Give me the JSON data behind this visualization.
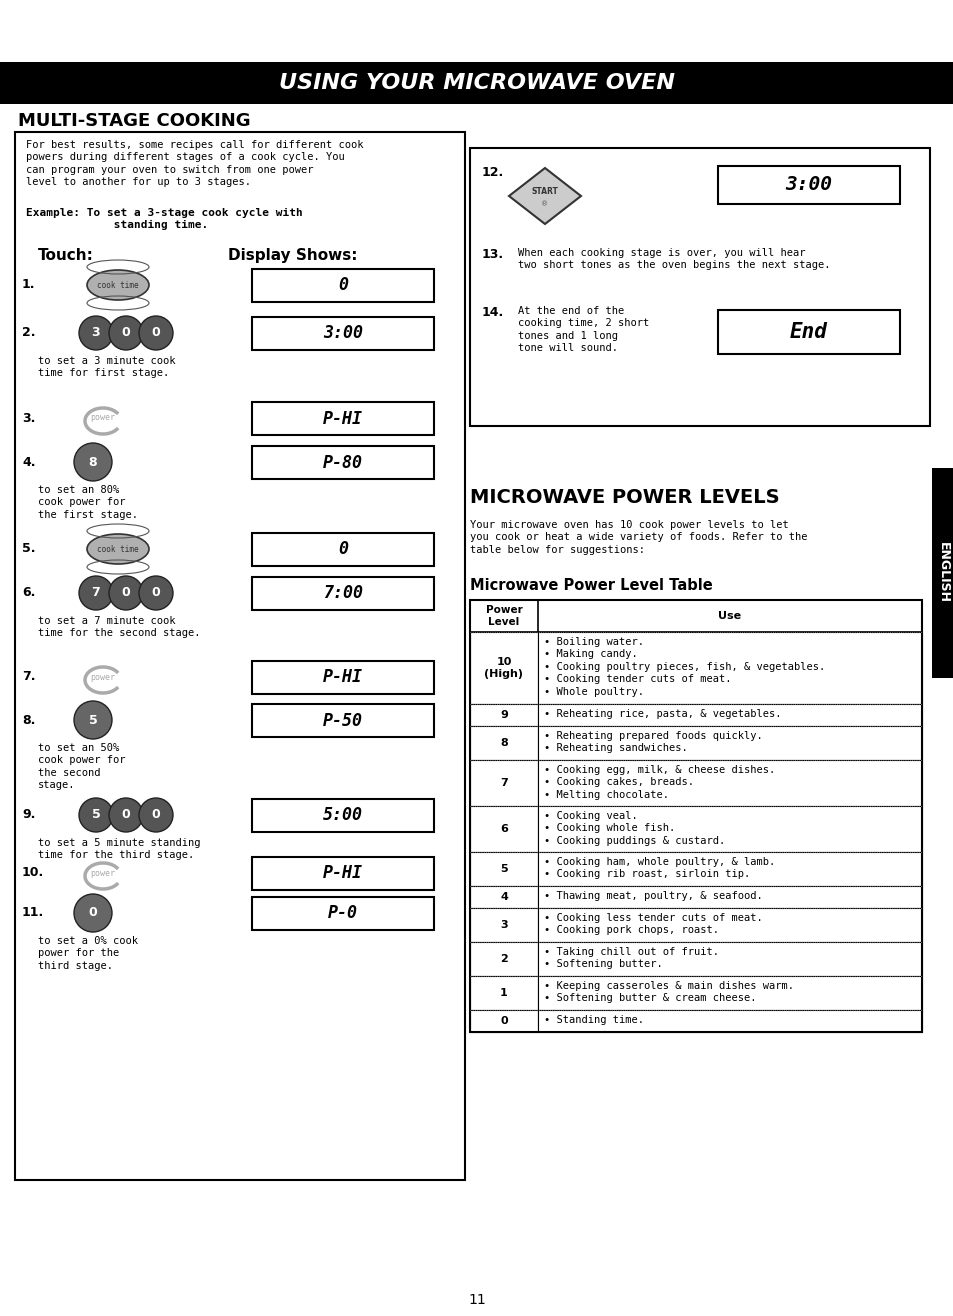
{
  "title": "USING YOUR MICROWAVE OVEN",
  "title_bg": "#000000",
  "title_color": "#ffffff",
  "page_bg": "#ffffff",
  "section1_title": "MULTI-STAGE COOKING",
  "section2_title": "MICROWAVE POWER LEVELS",
  "table_title": "Microwave Power Level Table",
  "intro_text1": "For best results, some recipes call for different cook\npowers during different stages of a cook cycle. You\ncan program your oven to switch from one power\nlevel to another for up to 3 stages.",
  "power_intro": "Your microwave oven has 10 cook power levels to let\nyou cook or heat a wide variety of foods. Refer to the\ntable below for suggestions:",
  "power_table": [
    {
      "level": "10\n(High)",
      "use": "• Boiling water.\n• Making candy.\n• Cooking poultry pieces, fish, & vegetables.\n• Cooking tender cuts of meat.\n• Whole poultry."
    },
    {
      "level": "9",
      "use": "• Reheating rice, pasta, & vegetables."
    },
    {
      "level": "8",
      "use": "• Reheating prepared foods quickly.\n• Reheating sandwiches."
    },
    {
      "level": "7",
      "use": "• Cooking egg, milk, & cheese dishes.\n• Cooking cakes, breads.\n• Melting chocolate."
    },
    {
      "level": "6",
      "use": "• Cooking veal.\n• Cooking whole fish.\n• Cooking puddings & custard."
    },
    {
      "level": "5",
      "use": "• Cooking ham, whole poultry, & lamb.\n• Cooking rib roast, sirloin tip."
    },
    {
      "level": "4",
      "use": "• Thawing meat, poultry, & seafood."
    },
    {
      "level": "3",
      "use": "• Cooking less tender cuts of meat.\n• Cooking pork chops, roast."
    },
    {
      "level": "2",
      "use": "• Taking chill out of fruit.\n• Softening butter."
    },
    {
      "level": "1",
      "use": "• Keeping casseroles & main dishes warm.\n• Softening butter & cream cheese."
    },
    {
      "level": "0",
      "use": "• Standing time."
    }
  ],
  "page_number": "11"
}
